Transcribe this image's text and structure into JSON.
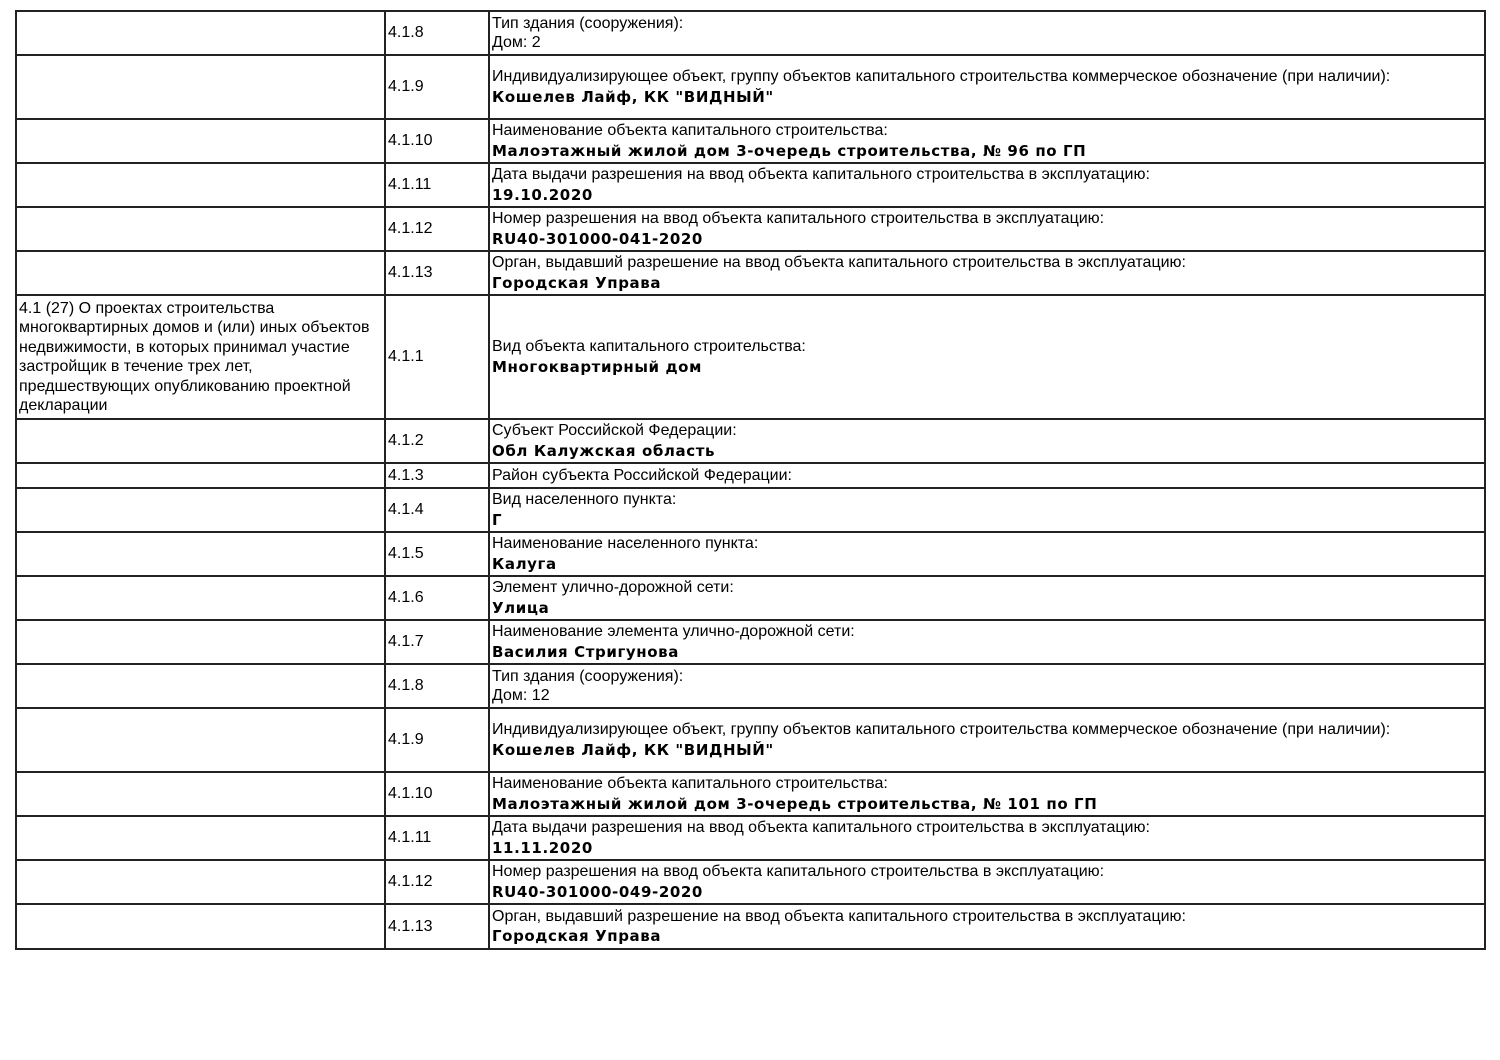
{
  "rows": [
    {
      "section": "",
      "code": "4.1.8",
      "label": "Тип здания (сооружения):",
      "value": "",
      "plain_value": "Дом: 2"
    },
    {
      "section": "",
      "code": "4.1.9",
      "label": "Индивидуализирующее объект, группу объектов капитального строительства коммерческое обозначение (при наличии):",
      "value": "Кошелев Лайф, КК \"ВИДНЫЙ\""
    },
    {
      "section": "",
      "code": "4.1.10",
      "label": "Наименование объекта капитального строительства:",
      "value": "Малоэтажный жилой дом 3-очередь строительства, № 96 по ГП"
    },
    {
      "section": "",
      "code": "4.1.11",
      "label": "Дата выдачи разрешения на ввод объекта капитального строительства в эксплуатацию:",
      "value": "19.10.2020"
    },
    {
      "section": "",
      "code": "4.1.12",
      "label": "Номер разрешения на ввод объекта капитального строительства в эксплуатацию:",
      "value": "RU40-301000-041-2020"
    },
    {
      "section": "",
      "code": "4.1.13",
      "label": "Орган, выдавший разрешение на ввод объекта капитального строительства в эксплуатацию:",
      "value": "Городская Управа"
    },
    {
      "section": "4.1 (27) О проектах строительства многоквартирных домов и (или) иных объектов недвижимости, в которых принимал участие застройщик в течение трех лет, предшествующих опубликованию проектной декларации",
      "code": "4.1.1",
      "label": "Вид объекта капитального строительства:",
      "value": "Многоквартирный дом"
    },
    {
      "section": "",
      "code": "4.1.2",
      "label": "Субъект Российской Федерации:",
      "value": "Обл Калужская область"
    },
    {
      "section": "",
      "code": "4.1.3",
      "label": "Район субъекта Российской Федерации:",
      "value": ""
    },
    {
      "section": "",
      "code": "4.1.4",
      "label": "Вид населенного пункта:",
      "value": "Г"
    },
    {
      "section": "",
      "code": "4.1.5",
      "label": "Наименование населенного пункта:",
      "value": "Калуга"
    },
    {
      "section": "",
      "code": "4.1.6",
      "label": "Элемент улично-дорожной сети:",
      "value": "Улица"
    },
    {
      "section": "",
      "code": "4.1.7",
      "label": "Наименование элемента улично-дорожной сети:",
      "value": "Василия Стригунова"
    },
    {
      "section": "",
      "code": "4.1.8",
      "label": "Тип здания (сооружения):",
      "value": "",
      "plain_value": "Дом: 12"
    },
    {
      "section": "",
      "code": "4.1.9",
      "label": "Индивидуализирующее объект, группу объектов капитального строительства коммерческое обозначение (при наличии):",
      "value": "Кошелев Лайф, КК \"ВИДНЫЙ\""
    },
    {
      "section": "",
      "code": "4.1.10",
      "label": "Наименование объекта капитального строительства:",
      "value": "Малоэтажный жилой дом 3-очередь строительства, № 101 по ГП"
    },
    {
      "section": "",
      "code": "4.1.11",
      "label": "Дата выдачи разрешения на ввод объекта капитального строительства в эксплуатацию:",
      "value": "11.11.2020"
    },
    {
      "section": "",
      "code": "4.1.12",
      "label": "Номер разрешения на ввод объекта капитального строительства в эксплуатацию:",
      "value": "RU40-301000-049-2020"
    },
    {
      "section": "",
      "code": "4.1.13",
      "label": "Орган, выдавший разрешение на ввод объекта капитального строительства в эксплуатацию:",
      "value": "Городская Управа"
    }
  ]
}
